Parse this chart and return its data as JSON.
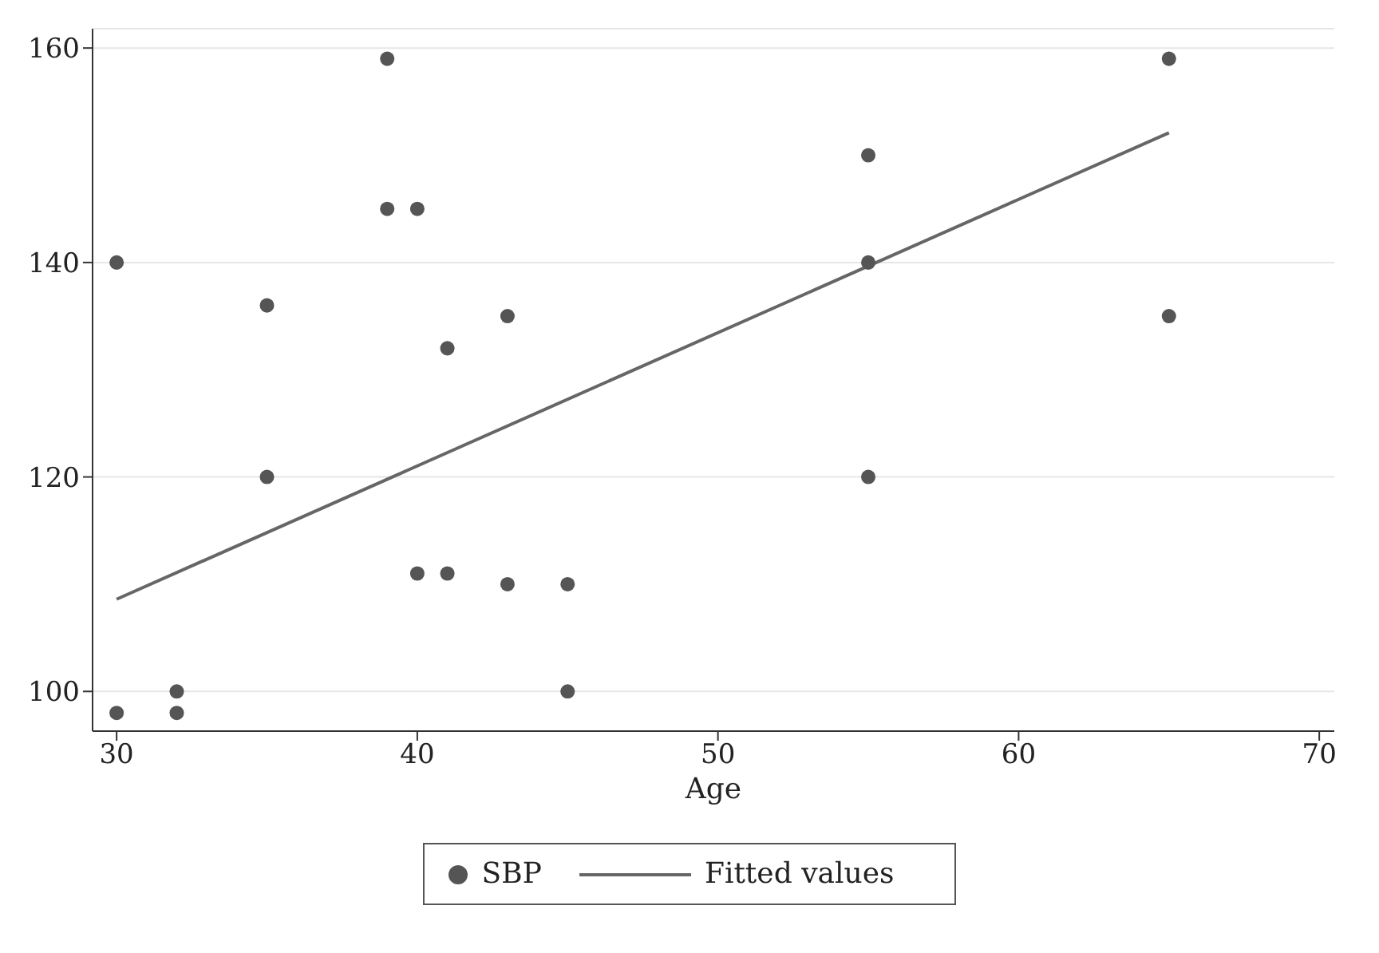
{
  "chart_data": {
    "type": "scatter",
    "xlabel": "Age",
    "xlim": [
      29.2,
      70.5
    ],
    "xticks": [
      30,
      40,
      50,
      60,
      70
    ],
    "ylim": [
      96.3,
      161.8
    ],
    "yticks": [
      100,
      120,
      140,
      160
    ],
    "grid": "y",
    "legend": "bottom",
    "series": [
      {
        "name": "SBP",
        "marker": "circle",
        "color": "#555555",
        "x": [
          30,
          30,
          32,
          32,
          35,
          35,
          39,
          39,
          40,
          40,
          41,
          41,
          43,
          43,
          45,
          45,
          55,
          55,
          55,
          65,
          65
        ],
        "values": [
          140,
          98,
          100,
          98,
          136,
          120,
          159,
          145,
          145,
          111,
          132,
          111,
          135,
          110,
          110,
          100,
          150,
          140,
          120,
          159,
          135
        ]
      },
      {
        "name": "Fitted values",
        "type": "line",
        "color": "#666666",
        "x": [
          30,
          65
        ],
        "values": [
          108.6,
          152.1
        ]
      }
    ]
  }
}
